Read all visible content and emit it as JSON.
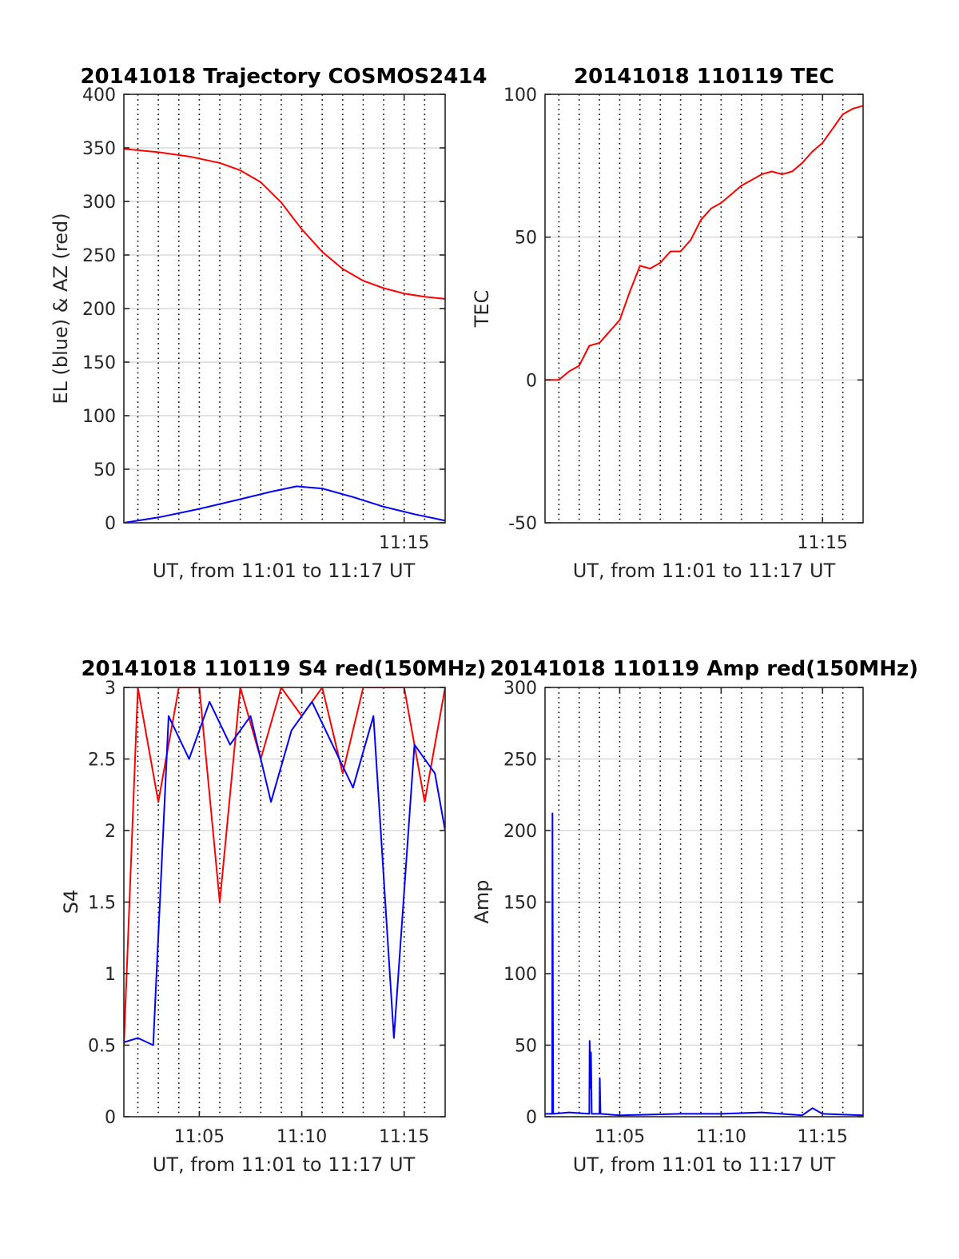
{
  "chart_data": [
    {
      "type": "line",
      "title": "20141018 Trajectory COSMOS2414",
      "xlabel": "UT, from 11:01 to 11:17 UT",
      "ylabel": "EL (blue) & AZ (red)",
      "xlim": [
        "11:01:19",
        "11:17:00"
      ],
      "ylim": [
        0,
        400
      ],
      "yticks": [
        "0",
        "50",
        "100",
        "150",
        "200",
        "250",
        "300",
        "350",
        "400"
      ],
      "xticks": [
        {
          "at": "11:15",
          "label": "11:15"
        }
      ],
      "grid": true,
      "series": [
        {
          "color": "#ff0000",
          "x": [
            "11:01:19",
            "11:03:00",
            "11:04:30",
            "11:06:00",
            "11:07:00",
            "11:08:00",
            "11:09:00",
            "11:10:00",
            "11:11:00",
            "11:12:00",
            "11:13:00",
            "11:14:00",
            "11:15:00",
            "11:16:00",
            "11:17:00"
          ],
          "values": [
            349,
            346,
            342,
            336,
            329,
            318,
            299,
            274,
            253,
            237,
            226,
            219,
            214,
            211,
            209
          ]
        },
        {
          "color": "#0000ff",
          "x": [
            "11:01:19",
            "11:03:00",
            "11:05:00",
            "11:07:00",
            "11:08:30",
            "11:09:45",
            "11:11:00",
            "11:12:30",
            "11:14:00",
            "11:15:30",
            "11:17:00"
          ],
          "values": [
            0,
            5,
            13,
            22,
            29,
            34,
            32,
            24,
            15,
            8,
            2
          ]
        }
      ]
    },
    {
      "type": "line",
      "title": "20141018 110119 TEC",
      "xlabel": "UT, from 11:01 to 11:17 UT",
      "ylabel": "TEC",
      "xlim": [
        "11:01:19",
        "11:17:00"
      ],
      "ylim": [
        -50,
        100
      ],
      "yticks": [
        "-50",
        "0",
        "50",
        "100"
      ],
      "xticks": [
        {
          "at": "11:15",
          "label": "11:15"
        }
      ],
      "grid": true,
      "series": [
        {
          "color": "#ff0000",
          "x": [
            "11:01:19",
            "11:02:00",
            "11:02:30",
            "11:03:00",
            "11:03:30",
            "11:04:00",
            "11:04:30",
            "11:05:00",
            "11:05:30",
            "11:06:00",
            "11:06:30",
            "11:07:00",
            "11:07:30",
            "11:08:00",
            "11:08:30",
            "11:09:00",
            "11:09:30",
            "11:10:00",
            "11:10:30",
            "11:11:00",
            "11:11:30",
            "11:12:00",
            "11:12:30",
            "11:13:00",
            "11:13:30",
            "11:14:00",
            "11:14:30",
            "11:15:00",
            "11:15:30",
            "11:16:00",
            "11:16:30",
            "11:17:00"
          ],
          "values": [
            0,
            0,
            3,
            5,
            12,
            13,
            17,
            21,
            31,
            40,
            39,
            41,
            45,
            45,
            49,
            56,
            60,
            62,
            65,
            68,
            70,
            72,
            73,
            72,
            73,
            76,
            80,
            83,
            88,
            93,
            95,
            96
          ]
        }
      ]
    },
    {
      "type": "line",
      "title": "20141018 110119 S4 red(150MHz)",
      "xlabel": "UT, from 11:01 to 11:17 UT",
      "ylabel": "S4",
      "xlim": [
        "11:01:19",
        "11:17:00"
      ],
      "ylim": [
        0,
        3
      ],
      "yticks": [
        "0",
        "0.5",
        "1",
        "1.5",
        "2",
        "2.5",
        "3"
      ],
      "xticks": [
        {
          "at": "11:05",
          "label": "11:05"
        },
        {
          "at": "11:10",
          "label": "11:10"
        },
        {
          "at": "11:15",
          "label": "11:15"
        }
      ],
      "grid": true,
      "series": [
        {
          "color": "#ff0000",
          "x": [
            "11:01:19",
            "11:02:00",
            "11:03:00",
            "11:04:00",
            "11:05:00",
            "11:06:00",
            "11:07:00",
            "11:08:00",
            "11:09:00",
            "11:10:00",
            "11:11:00",
            "11:12:00",
            "11:13:00",
            "11:14:00",
            "11:15:00",
            "11:16:00",
            "11:17:00"
          ],
          "values": [
            0.5,
            3,
            2.2,
            3,
            3,
            1.5,
            3,
            2.5,
            3,
            2.8,
            3,
            2.4,
            3,
            3,
            3,
            2.2,
            3
          ]
        },
        {
          "color": "#0000ff",
          "x": [
            "11:01:19",
            "11:02:00",
            "11:02:45",
            "11:03:30",
            "11:04:30",
            "11:05:30",
            "11:06:30",
            "11:07:30",
            "11:08:30",
            "11:09:30",
            "11:10:30",
            "11:11:30",
            "11:12:30",
            "11:13:30",
            "11:14:30",
            "11:15:30",
            "11:16:30",
            "11:17:00"
          ],
          "values": [
            0.52,
            0.55,
            0.5,
            2.8,
            2.5,
            2.9,
            2.6,
            2.8,
            2.2,
            2.7,
            2.9,
            2.6,
            2.3,
            2.8,
            0.55,
            2.6,
            2.4,
            2.0
          ]
        }
      ]
    },
    {
      "type": "line",
      "title": "20141018 110119 Amp red(150MHz)",
      "xlabel": "UT, from 11:01 to 11:17 UT",
      "ylabel": "Amp",
      "xlim": [
        "11:01:19",
        "11:17:00"
      ],
      "ylim": [
        0,
        300
      ],
      "yticks": [
        "0",
        "50",
        "100",
        "150",
        "200",
        "250",
        "300"
      ],
      "xticks": [
        {
          "at": "11:05",
          "label": "11:05"
        },
        {
          "at": "11:10",
          "label": "11:10"
        },
        {
          "at": "11:15",
          "label": "11:15"
        }
      ],
      "grid": true,
      "series": [
        {
          "color": "#0000ff",
          "x": [
            "11:01:19",
            "11:01:40",
            "11:01:41",
            "11:01:43",
            "11:02:30",
            "11:03:30",
            "11:03:31",
            "11:03:33",
            "11:03:34",
            "11:03:35",
            "11:03:37",
            "11:04:00",
            "11:04:01",
            "11:04:03",
            "11:05:00",
            "11:08:00",
            "11:10:00",
            "11:12:00",
            "11:14:00",
            "11:14:30",
            "11:15:00",
            "11:17:00"
          ],
          "values": [
            2,
            2,
            212,
            2,
            3,
            2,
            53,
            30,
            20,
            45,
            2,
            2,
            27,
            2,
            1,
            2,
            2,
            3,
            1,
            6,
            2,
            1
          ]
        }
      ]
    }
  ]
}
